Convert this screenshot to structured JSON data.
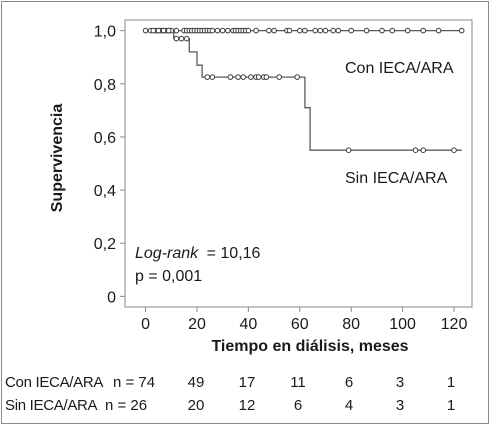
{
  "chart_data": {
    "type": "line",
    "subtype": "kaplan-meier",
    "xlabel": "Tiempo en diálisis, meses",
    "ylabel": "Supervivencia",
    "xlim": [
      -8,
      127
    ],
    "ylim": [
      -0.04,
      1.04
    ],
    "x_ticks": [
      0,
      20,
      40,
      60,
      80,
      100,
      120
    ],
    "y_ticks": [
      0,
      0.2,
      0.4,
      0.6,
      0.8,
      1.0
    ],
    "y_tick_labels": [
      "0",
      "0,2",
      "0,4",
      "0,6",
      "0,8",
      "1,0"
    ],
    "grid": false,
    "series": [
      {
        "name": "Con IECA/ARA",
        "steps": [
          [
            0,
            1.0
          ],
          [
            123,
            1.0
          ]
        ],
        "censored": [
          0,
          2,
          4,
          5,
          6,
          7,
          8,
          9,
          10,
          12,
          15,
          16,
          17,
          18,
          19,
          20,
          21,
          22,
          23,
          24,
          25,
          26,
          28,
          30,
          32,
          34,
          35,
          36,
          37,
          38,
          39,
          40,
          43,
          48,
          50,
          55,
          56,
          60,
          62,
          66,
          68,
          70,
          73,
          75,
          80,
          86,
          92,
          96,
          102,
          108,
          114,
          123
        ]
      },
      {
        "name": "Sin IECA/ARA",
        "steps": [
          [
            0,
            1.0
          ],
          [
            11,
            1.0
          ],
          [
            11,
            0.97
          ],
          [
            17,
            0.97
          ],
          [
            17,
            0.92
          ],
          [
            20,
            0.92
          ],
          [
            20,
            0.87
          ],
          [
            22,
            0.87
          ],
          [
            22,
            0.825
          ],
          [
            62,
            0.825
          ],
          [
            62,
            0.71
          ],
          [
            64,
            0.71
          ],
          [
            64,
            0.55
          ],
          [
            123,
            0.55
          ]
        ],
        "censored": [
          3,
          5,
          7,
          9,
          12,
          14,
          16,
          24,
          26,
          33,
          36,
          38,
          41,
          43,
          44,
          46,
          47,
          52,
          59,
          79,
          105,
          108,
          120
        ]
      }
    ],
    "annotations": {
      "logrank_label": "Log-rank",
      "logrank_value": "= 10,16",
      "p_value": "p = 0,001"
    }
  },
  "risk_table": {
    "rows": [
      {
        "label": "Con IECA/ARA",
        "n_label": "n = 74",
        "values": [
          "49",
          "17",
          "11",
          "6",
          "3",
          "1"
        ]
      },
      {
        "label": "Sin IECA/ARA",
        "n_label": "n = 26",
        "values": [
          "20",
          "12",
          "6",
          "4",
          "3",
          "1"
        ]
      }
    ]
  }
}
